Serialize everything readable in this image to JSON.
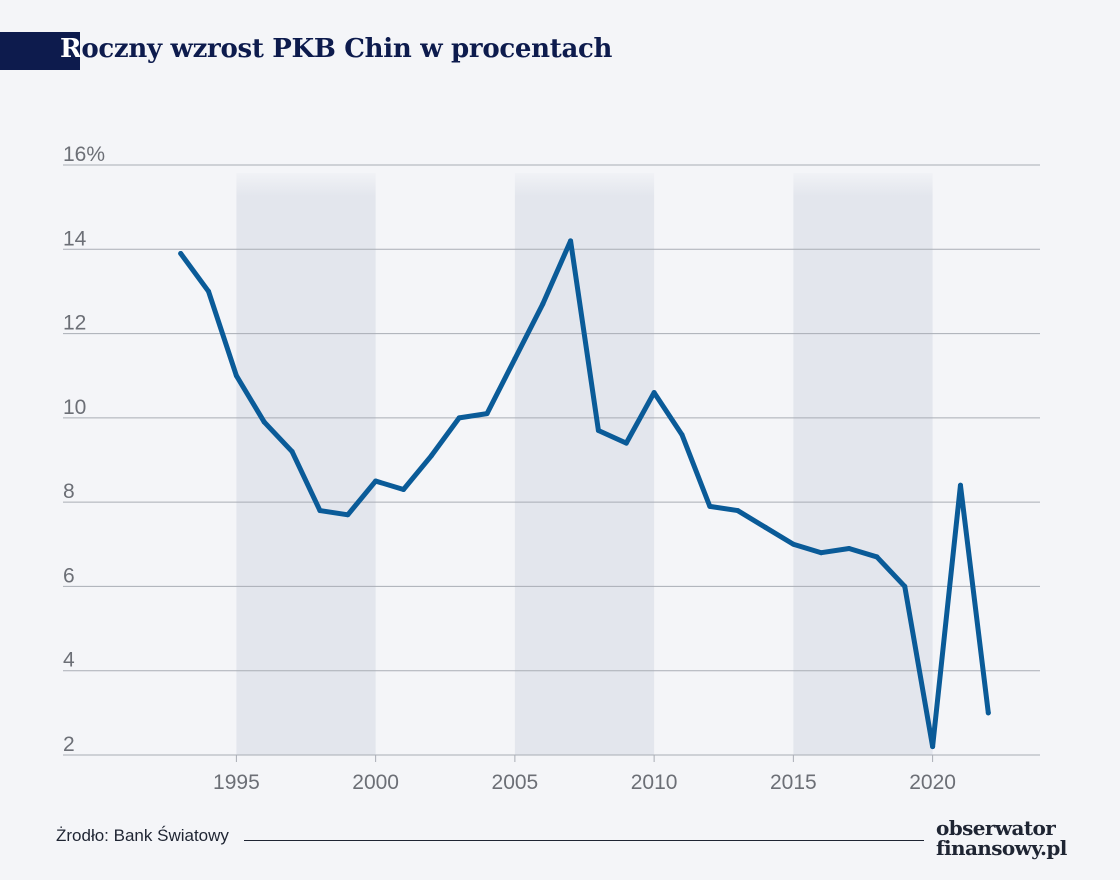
{
  "header": {
    "title_first": "R",
    "title_rest": "oczny wzrost PKB Chin w procentach"
  },
  "footer": {
    "source": "Żrodło: Bank Światowy"
  },
  "brand": {
    "line1": "obserwator",
    "line2": "finansowy.pl"
  },
  "colors": {
    "line": "#0a5b98",
    "band": "#e3e6ed",
    "grid": "#a9adb5",
    "text": "#6c6f76",
    "title": "#0d1b4d"
  },
  "chart_data": {
    "type": "line",
    "title": "Roczny wzrost PKB Chin w procentach",
    "xlabel": "",
    "ylabel": "",
    "x": [
      1993,
      1994,
      1995,
      1996,
      1997,
      1998,
      1999,
      2000,
      2001,
      2002,
      2003,
      2004,
      2005,
      2006,
      2007,
      2008,
      2009,
      2010,
      2011,
      2012,
      2013,
      2014,
      2015,
      2016,
      2017,
      2018,
      2019,
      2020,
      2021,
      2022
    ],
    "series": [
      {
        "values": [
          13.9,
          13.0,
          11.0,
          9.9,
          9.2,
          7.8,
          7.7,
          8.5,
          8.3,
          9.1,
          10.0,
          10.1,
          11.4,
          12.7,
          14.2,
          9.7,
          9.4,
          10.6,
          9.6,
          7.9,
          7.8,
          7.4,
          7.0,
          6.8,
          6.9,
          6.7,
          6.0,
          2.2,
          8.4,
          3.0
        ]
      }
    ],
    "xlim": [
      1991,
      2024
    ],
    "ylim": [
      2,
      16
    ],
    "y_ticks": [
      "2",
      "4",
      "6",
      "8",
      "10",
      "12",
      "14",
      "16%"
    ],
    "y_tick_values": [
      2,
      4,
      6,
      8,
      10,
      12,
      14,
      16
    ],
    "x_ticks": [
      "1995",
      "2000",
      "2005",
      "2010",
      "2015",
      "2020"
    ],
    "x_tick_values": [
      1995,
      2000,
      2005,
      2010,
      2015,
      2020
    ],
    "shaded_bands": [
      [
        1995,
        2000
      ],
      [
        2005,
        2010
      ],
      [
        2015,
        2020
      ]
    ],
    "grid": true
  }
}
